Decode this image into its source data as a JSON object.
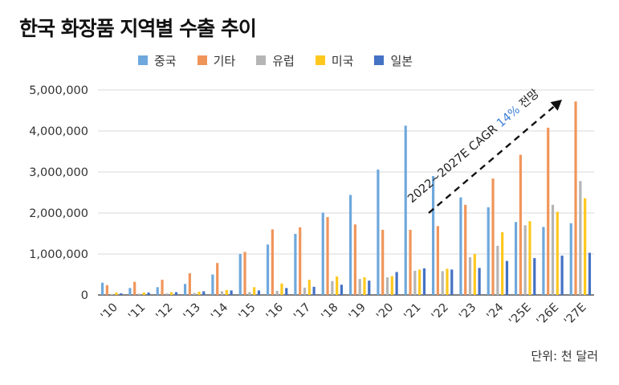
{
  "title": "한국 화장품 지역별 수출 추이",
  "unit_note": "단위: 천 달러",
  "annotation": {
    "prefix": "2022~2027E CAGR ",
    "highlight": "14%",
    "suffix": " 전망",
    "highlight_color": "#3d7fd6"
  },
  "colors": {
    "중국": "#6fa8dc",
    "기타": "#f0955a",
    "유럽": "#b5b5b5",
    "미국": "#ffc81e",
    "일본": "#4472c4"
  },
  "chart_data": {
    "type": "bar",
    "title": "한국 화장품 지역별 수출 추이",
    "xlabel": "",
    "ylabel": "",
    "ylim": [
      0,
      5000000
    ],
    "yticks": [
      0,
      1000000,
      2000000,
      3000000,
      4000000,
      5000000
    ],
    "ytick_labels": [
      "0",
      "1,000,000",
      "2,000,000",
      "3,000,000",
      "4,000,000",
      "5,000,000"
    ],
    "grid": true,
    "legend_position": "top",
    "categories": [
      "'10",
      "'11",
      "'12",
      "'13",
      "'14",
      "'15",
      "'16",
      "'17",
      "'18",
      "'19",
      "'20",
      "'21",
      "'22",
      "'23",
      "'24",
      "'25E",
      "'26E",
      "'27E"
    ],
    "series": [
      {
        "name": "중국",
        "values": [
          300000,
          170000,
          190000,
          270000,
          500000,
          1000000,
          1230000,
          1490000,
          2010000,
          2440000,
          3060000,
          4130000,
          2900000,
          2380000,
          2140000,
          1780000,
          1660000,
          1750000
        ]
      },
      {
        "name": "기타",
        "values": [
          240000,
          320000,
          370000,
          530000,
          780000,
          1050000,
          1600000,
          1650000,
          1900000,
          1720000,
          1590000,
          1590000,
          1680000,
          2200000,
          2840000,
          3420000,
          4080000,
          4720000
        ]
      },
      {
        "name": "유럽",
        "values": [
          20000,
          30000,
          40000,
          50000,
          90000,
          70000,
          100000,
          180000,
          340000,
          390000,
          430000,
          590000,
          580000,
          920000,
          1200000,
          1700000,
          2200000,
          2780000
        ]
      },
      {
        "name": "미국",
        "values": [
          60000,
          60000,
          70000,
          80000,
          120000,
          190000,
          280000,
          370000,
          450000,
          430000,
          460000,
          620000,
          640000,
          1000000,
          1530000,
          1800000,
          2030000,
          2360000
        ]
      },
      {
        "name": "일본",
        "values": [
          40000,
          60000,
          70000,
          90000,
          110000,
          110000,
          170000,
          200000,
          250000,
          350000,
          560000,
          650000,
          620000,
          660000,
          830000,
          900000,
          960000,
          1030000
        ]
      }
    ]
  }
}
